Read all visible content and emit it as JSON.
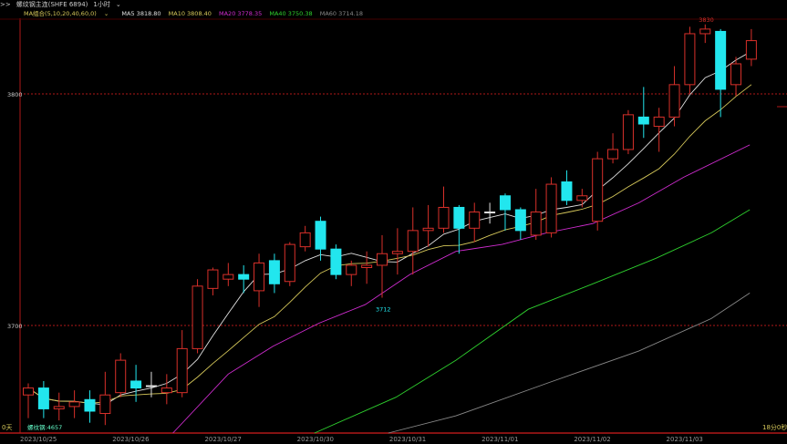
{
  "header": {
    "icon": "back-arrows-icon",
    "symbol": "螺纹钢主连(SHFE 6894)",
    "period": "1小时",
    "period_icon": "chevron-down-icon"
  },
  "legend": {
    "group": "MA组合(5,10,20,40,60,0)",
    "group_icon": "chevron-down-icon",
    "items": [
      {
        "label": "MA5 3818.80",
        "color": "#e0e0e0"
      },
      {
        "label": "MA10 3808.40",
        "color": "#d6c85a"
      },
      {
        "label": "MA20 3778.35",
        "color": "#d02cd0"
      },
      {
        "label": "MA40 3750.38",
        "color": "#2ed02e"
      },
      {
        "label": "MA60 3714.18",
        "color": "#888888"
      }
    ]
  },
  "footer": {
    "left_badge": "0天",
    "left_text": "螺纹钢:4657",
    "countdown": "18分0秒"
  },
  "chart_data": {
    "type": "candlestick",
    "ylim": [
      3653.5,
      3832
    ],
    "yticks": [
      3700,
      3800
    ],
    "grid": "dashed horizontal at y ticks",
    "colors": {
      "up": "#d8302a",
      "down": "#22e6ee",
      "flat": "#e0e0e0",
      "frame": "#b01818"
    },
    "xticks": [
      {
        "index": 0,
        "label": "2023/10/25"
      },
      {
        "index": 6,
        "label": "2023/10/26"
      },
      {
        "index": 12,
        "label": "2023/10/27"
      },
      {
        "index": 18,
        "label": "2023/10/30"
      },
      {
        "index": 24,
        "label": "2023/10/31"
      },
      {
        "index": 30,
        "label": "2023/11/01"
      },
      {
        "index": 36,
        "label": "2023/11/02"
      },
      {
        "index": 42,
        "label": "2023/11/03"
      }
    ],
    "ohlc": [
      [
        3670,
        3675,
        3660,
        3673
      ],
      [
        3673,
        3676,
        3660,
        3664
      ],
      [
        3664,
        3671,
        3659,
        3665
      ],
      [
        3665,
        3672,
        3660,
        3667
      ],
      [
        3668,
        3672,
        3658,
        3663
      ],
      [
        3662,
        3680,
        3657,
        3670
      ],
      [
        3671,
        3688,
        3669,
        3685
      ],
      [
        3676,
        3683,
        3667,
        3673
      ],
      [
        3674,
        3680,
        3669,
        3674
      ],
      [
        3671,
        3679,
        3666,
        3673
      ],
      [
        3671,
        3698,
        3669,
        3690
      ],
      [
        3690,
        3720,
        3688,
        3717
      ],
      [
        3716,
        3725,
        3713,
        3724
      ],
      [
        3720,
        3727,
        3717,
        3722
      ],
      [
        3722,
        3726,
        3714,
        3720
      ],
      [
        3715,
        3731,
        3708,
        3727
      ],
      [
        3728,
        3731,
        3714,
        3718
      ],
      [
        3719,
        3736,
        3717,
        3735
      ],
      [
        3734,
        3743,
        3732,
        3740
      ],
      [
        3745,
        3747,
        3728,
        3733
      ],
      [
        3733,
        3735,
        3720,
        3722
      ],
      [
        3722,
        3728,
        3717,
        3726
      ],
      [
        3725,
        3732,
        3718,
        3726
      ],
      [
        3726,
        3739,
        3712,
        3731
      ],
      [
        3731,
        3742,
        3722,
        3732
      ],
      [
        3732,
        3751,
        3722,
        3741
      ],
      [
        3741,
        3752,
        3734,
        3742
      ],
      [
        3742,
        3760,
        3740,
        3751
      ],
      [
        3751,
        3752,
        3731,
        3742
      ],
      [
        3742,
        3753,
        3736,
        3749
      ],
      [
        3749,
        3753,
        3744,
        3749
      ],
      [
        3756,
        3757,
        3741,
        3750
      ],
      [
        3750,
        3751,
        3737,
        3741
      ],
      [
        3739,
        3759,
        3737,
        3749
      ],
      [
        3740,
        3764,
        3738,
        3761
      ],
      [
        3762,
        3767,
        3752,
        3754
      ],
      [
        3754,
        3759,
        3751,
        3756
      ],
      [
        3745,
        3775,
        3741,
        3772
      ],
      [
        3772,
        3783,
        3770,
        3776
      ],
      [
        3776,
        3793,
        3774,
        3791
      ],
      [
        3790,
        3803,
        3781,
        3787
      ],
      [
        3786,
        3794,
        3775,
        3790
      ],
      [
        3790,
        3812,
        3786,
        3804
      ],
      [
        3804,
        3829,
        3800,
        3826
      ],
      [
        3826,
        3830,
        3822,
        3828
      ],
      [
        3827,
        3828,
        3790,
        3802
      ],
      [
        3804,
        3816,
        3799,
        3813
      ],
      [
        3815,
        3828,
        3812,
        3823
      ]
    ],
    "ohlc_order": [
      "open",
      "high",
      "low",
      "close"
    ],
    "annotations": [
      {
        "index": 44,
        "value": 3830,
        "label": "3830",
        "color": "#d8302a"
      },
      {
        "index": 23,
        "value": 3712,
        "label": "3712",
        "color": "#22e6ee"
      }
    ],
    "ma_lines": [
      {
        "name": "MA20",
        "color": "#d02cd0",
        "points": [
          [
            9.4,
            3651
          ],
          [
            13,
            3679
          ],
          [
            15.9,
            3691
          ],
          [
            18.9,
            3701
          ],
          [
            21.9,
            3709
          ],
          [
            24.8,
            3722
          ],
          [
            27.8,
            3732
          ],
          [
            30.8,
            3735
          ],
          [
            33.7,
            3740
          ],
          [
            36.7,
            3744
          ],
          [
            39.7,
            3753
          ],
          [
            42.6,
            3764
          ],
          [
            46.9,
            3778
          ]
        ]
      },
      {
        "name": "MA40",
        "color": "#2ed02e",
        "points": [
          [
            18.6,
            3651
          ],
          [
            23.9,
            3669
          ],
          [
            27.8,
            3685
          ],
          [
            32.5,
            3707
          ],
          [
            36.7,
            3718
          ],
          [
            40.8,
            3729
          ],
          [
            44.4,
            3740
          ],
          [
            46.9,
            3750
          ]
        ]
      },
      {
        "name": "MA60",
        "color": "#888888",
        "points": [
          [
            23.4,
            3651
          ],
          [
            27.8,
            3661
          ],
          [
            33.7,
            3675
          ],
          [
            39.7,
            3689
          ],
          [
            44.4,
            3703
          ],
          [
            46.9,
            3714
          ]
        ]
      }
    ]
  }
}
